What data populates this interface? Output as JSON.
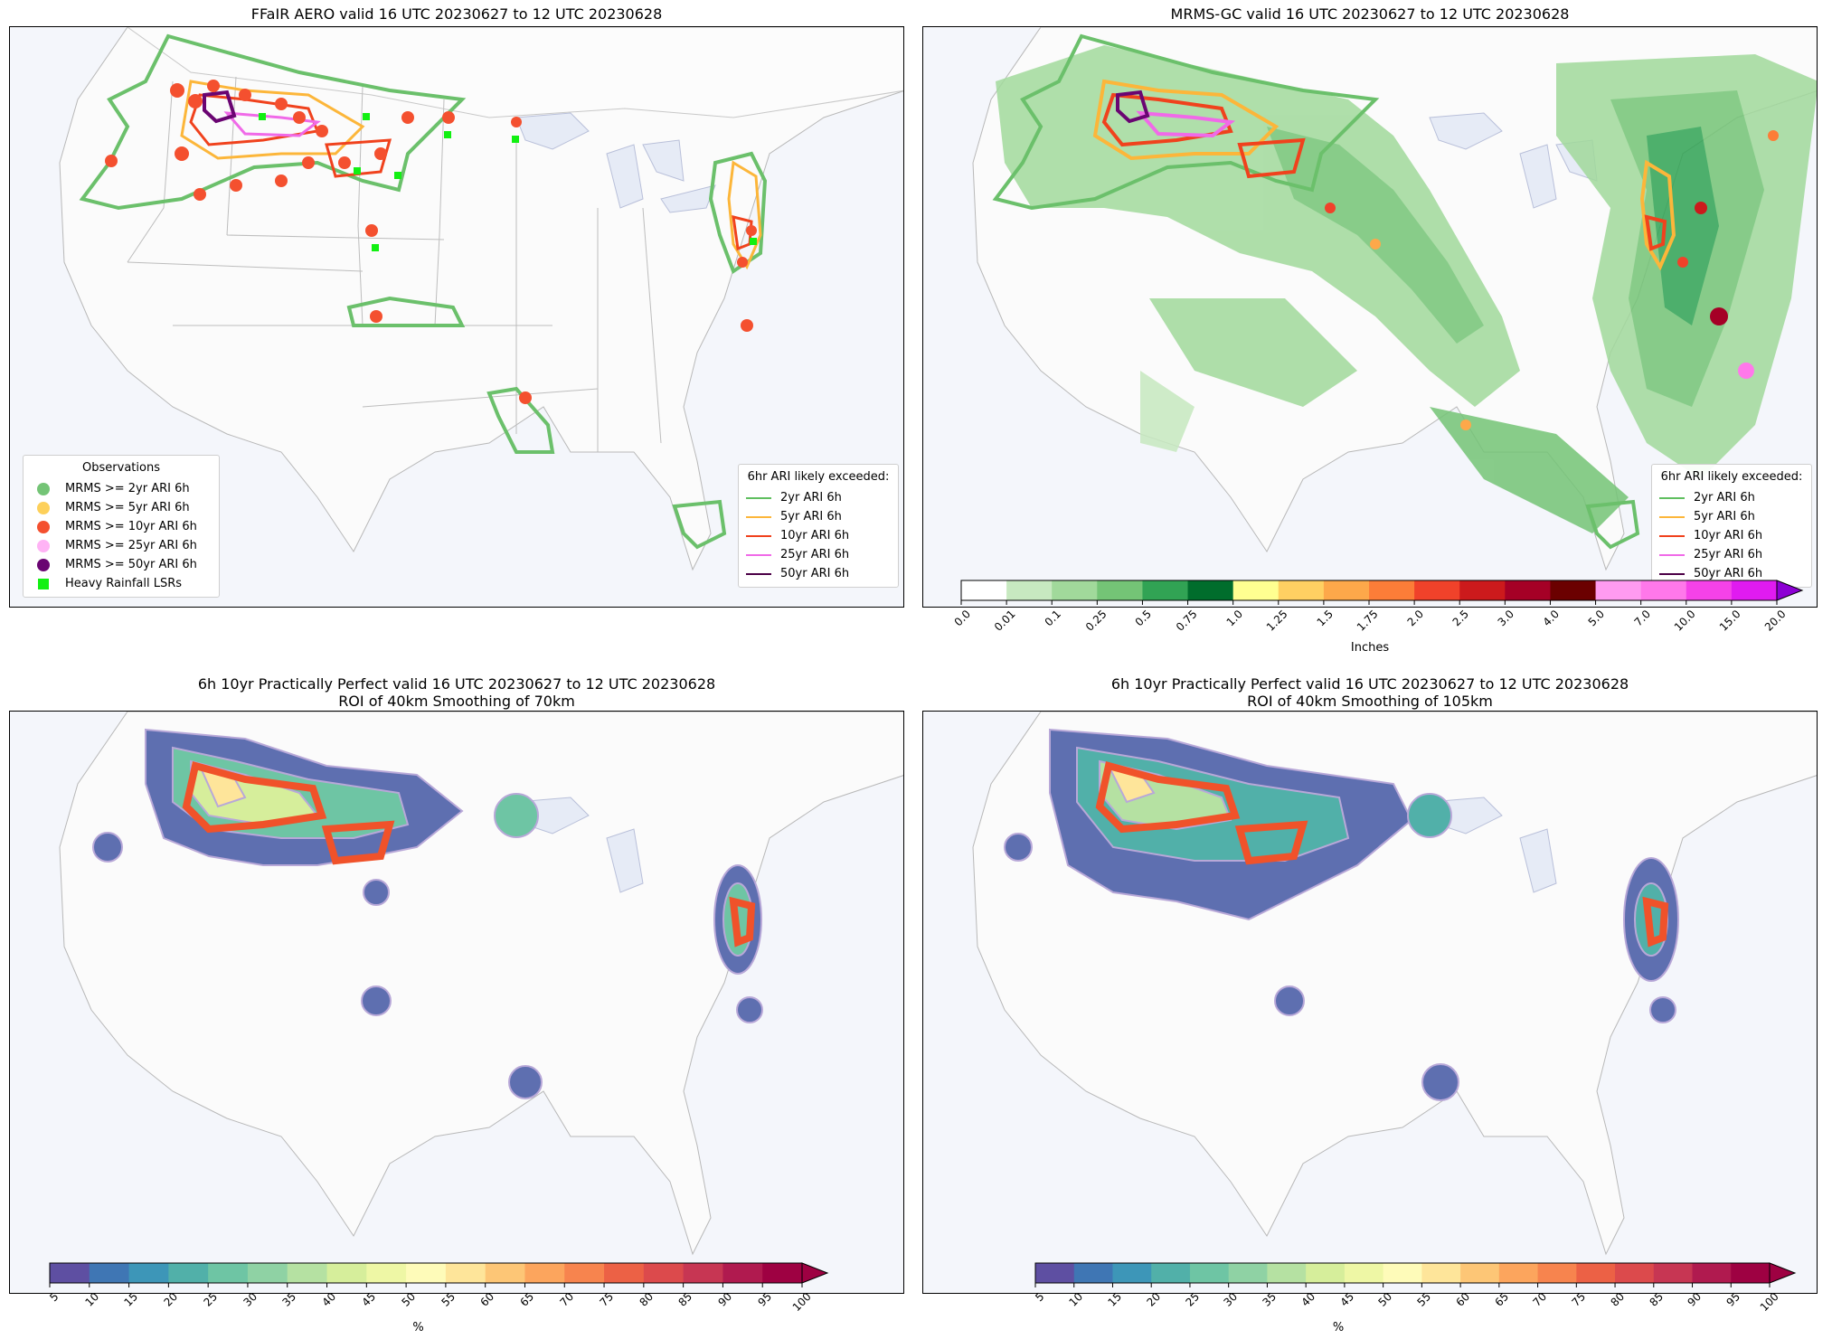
{
  "panels": [
    {
      "title": "FFaIR AERO valid 16 UTC 20230627 to 12 UTC 20230628",
      "observations_legend": {
        "title": "Observations",
        "items": [
          {
            "label": "MRMS >= 2yr ARI 6h",
            "color": "#74c476",
            "marker": "circle"
          },
          {
            "label": "MRMS >= 5yr ARI 6h",
            "color": "#fdd05a",
            "marker": "circle"
          },
          {
            "label": "MRMS >= 10yr ARI 6h",
            "color": "#f4502f",
            "marker": "circle"
          },
          {
            "label": "MRMS >= 25yr ARI 6h",
            "color": "#ffb3f5",
            "marker": "circle"
          },
          {
            "label": "MRMS >= 50yr ARI 6h",
            "color": "#6a0572",
            "marker": "circle"
          },
          {
            "label": "Heavy Rainfall LSRs",
            "color": "#12f012",
            "marker": "square"
          }
        ]
      },
      "ari_legend": {
        "title": "6hr ARI likely exceeded:",
        "items": [
          {
            "label": "2yr ARI 6h",
            "color": "#5fbf5f"
          },
          {
            "label": "5yr ARI 6h",
            "color": "#fcb63a"
          },
          {
            "label": "10yr ARI 6h",
            "color": "#f0421d"
          },
          {
            "label": "25yr ARI 6h",
            "color": "#f06ae8"
          },
          {
            "label": "50yr ARI 6h",
            "color": "#4b0046"
          }
        ]
      }
    },
    {
      "title": "MRMS-GC valid 16 UTC 20230627 to 12 UTC 20230628",
      "ari_legend": {
        "title": "6hr ARI likely exceeded:",
        "items": [
          {
            "label": "2yr ARI 6h",
            "color": "#5fbf5f"
          },
          {
            "label": "5yr ARI 6h",
            "color": "#fcb63a"
          },
          {
            "label": "10yr ARI 6h",
            "color": "#f0421d"
          },
          {
            "label": "25yr ARI 6h",
            "color": "#f06ae8"
          },
          {
            "label": "50yr ARI 6h",
            "color": "#4b0046"
          }
        ]
      },
      "colorbar": {
        "label": "Inches",
        "ticks": [
          "0.0",
          "0.01",
          "0.1",
          "0.25",
          "0.5",
          "0.75",
          "1.0",
          "1.25",
          "1.5",
          "1.75",
          "2.0",
          "2.5",
          "3.0",
          "4.0",
          "5.0",
          "7.0",
          "10.0",
          "15.0",
          "20.0"
        ],
        "colors": [
          "#ffffff",
          "#c7e9c0",
          "#a1d99b",
          "#74c476",
          "#31a354",
          "#006d2c",
          "#ffff91",
          "#ffd062",
          "#fda84a",
          "#fc7d38",
          "#f0422a",
          "#cc1a1c",
          "#a50026",
          "#6b0000",
          "#ff9bf0",
          "#ff78ea",
          "#f542e8",
          "#e01bf0",
          "#b600db",
          "#8c00d4"
        ]
      }
    },
    {
      "title": "6h 10yr Practically Perfect valid 16 UTC 20230627 to 12 UTC 20230628\nROI of 40km Smoothing of 70km",
      "colorbar": {
        "label": "%",
        "ticks": [
          "5",
          "10",
          "15",
          "20",
          "25",
          "30",
          "35",
          "40",
          "45",
          "50",
          "55",
          "60",
          "65",
          "70",
          "75",
          "80",
          "85",
          "90",
          "95",
          "100"
        ],
        "colors": [
          "#5e4fa2",
          "#3f76b4",
          "#3d96b8",
          "#51b0a9",
          "#6ec5a4",
          "#8fd2a4",
          "#b5e1a2",
          "#d6ee9b",
          "#eef7a5",
          "#fefbb9",
          "#fee59a",
          "#fdc676",
          "#fca55d",
          "#f7844e",
          "#ec6145",
          "#dc4a4c",
          "#c73653",
          "#b01a4f",
          "#9e0142"
        ]
      }
    },
    {
      "title": "6h 10yr Practically Perfect valid 16 UTC 20230627 to 12 UTC 20230628\nROI of 40km Smoothing of 105km",
      "colorbar": {
        "label": "%",
        "ticks": [
          "5",
          "10",
          "15",
          "20",
          "25",
          "30",
          "35",
          "40",
          "45",
          "50",
          "55",
          "60",
          "65",
          "70",
          "75",
          "80",
          "85",
          "90",
          "95",
          "100"
        ],
        "colors": [
          "#5e4fa2",
          "#3f76b4",
          "#3d96b8",
          "#51b0a9",
          "#6ec5a4",
          "#8fd2a4",
          "#b5e1a2",
          "#d6ee9b",
          "#eef7a5",
          "#fefbb9",
          "#fee59a",
          "#fdc676",
          "#fca55d",
          "#f7844e",
          "#ec6145",
          "#dc4a4c",
          "#c73653",
          "#b01a4f",
          "#9e0142"
        ]
      }
    }
  ]
}
